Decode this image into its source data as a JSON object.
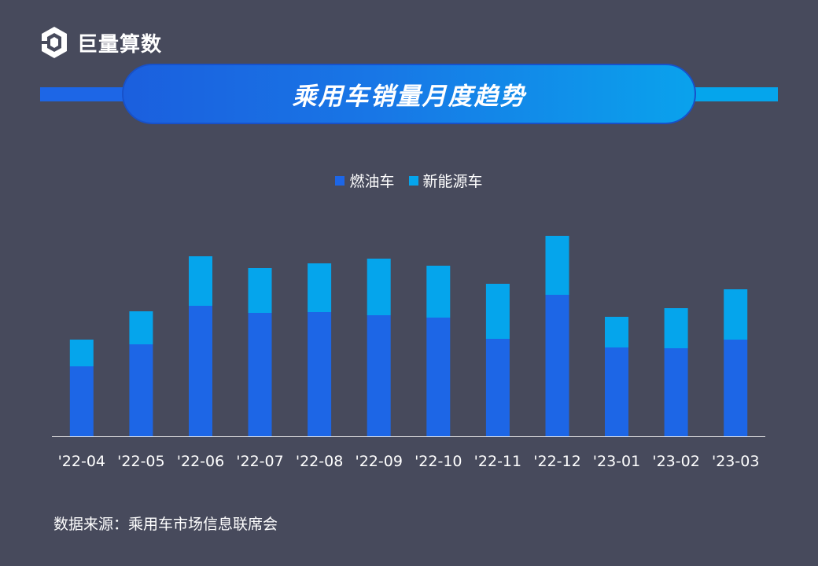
{
  "brand": {
    "name": "巨量算数"
  },
  "colors": {
    "background": "#474a5c",
    "fuel": "#1d66e6",
    "nev": "#05a5ec",
    "axis": "#e6e6e6"
  },
  "chart_data": {
    "type": "bar",
    "stacked": true,
    "title": "乘用车销量月度趋势",
    "categories": [
      "'22-04",
      "'22-05",
      "'22-06",
      "'22-07",
      "'22-08",
      "'22-09",
      "'22-10",
      "'22-11",
      "'22-12",
      "'23-01",
      "'23-02",
      "'23-03"
    ],
    "series": [
      {
        "name": "燃油车",
        "values": [
          89,
          117,
          166,
          157,
          158,
          154,
          151,
          124,
          180,
          113,
          112,
          123
        ]
      },
      {
        "name": "新能源车",
        "values": [
          34,
          42,
          63,
          57,
          62,
          72,
          66,
          70,
          75,
          39,
          51,
          64
        ]
      }
    ],
    "legend": "top-center",
    "ylim": [
      0,
      280
    ],
    "grid": false,
    "xlabel": "",
    "ylabel": ""
  },
  "source": "数据来源：乘用车市场信息联席会"
}
